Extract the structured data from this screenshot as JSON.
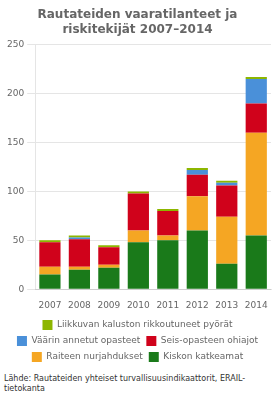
{
  "chart_data": {
    "type": "bar",
    "stacked": true,
    "title": "Rautateiden vaaratilanteet ja\nriskitekijät 2007–2014",
    "annotations": [
      "Lähde: Rautateiden yhteiset turvallisuusindikaattorit, ERAIL-tietokanta"
    ],
    "categories": [
      "2007",
      "2008",
      "2009",
      "2010",
      "2011",
      "2012",
      "2013",
      "2014"
    ],
    "series": [
      {
        "name": "Kiskon katkeamat",
        "color": "#1a7a1a",
        "values": [
          15,
          20,
          22,
          48,
          50,
          60,
          26,
          55
        ]
      },
      {
        "name": "Raiteen nurjahdukset",
        "color": "#f5a623",
        "values": [
          8,
          3,
          3,
          12,
          5,
          35,
          48,
          105
        ]
      },
      {
        "name": "Seis-opasteen ohiajot",
        "color": "#d0021b",
        "values": [
          25,
          28,
          18,
          38,
          25,
          22,
          32,
          30
        ]
      },
      {
        "name": "Väärin annetut opasteet",
        "color": "#4a90d9",
        "values": [
          0,
          2,
          0,
          0,
          0,
          5,
          3,
          25
        ]
      },
      {
        "name": "Liikkuvan kaluston rikkoutuneet pyörät",
        "color": "#8db600",
        "values": [
          2,
          2,
          2,
          2,
          2,
          2,
          2,
          2
        ]
      }
    ],
    "ylim": [
      0,
      250
    ],
    "yticks": [
      0,
      50,
      100,
      150,
      200,
      250
    ],
    "grid": true,
    "legend": "bottom"
  }
}
